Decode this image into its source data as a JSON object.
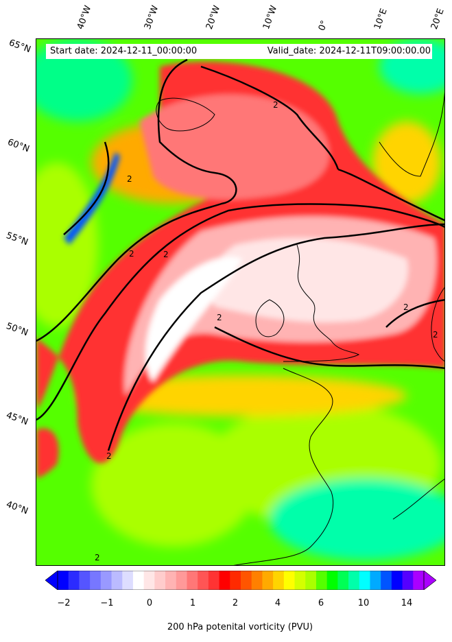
{
  "header": {
    "start_date": "Start date: 2024-12-11_00:00:00",
    "valid_date": "Valid_date: 2024-12-11T09:00:00.00"
  },
  "axes": {
    "longitude_labels": [
      "40°W",
      "30°W",
      "20°W",
      "10°W",
      "0°",
      "10°E",
      "20°E"
    ],
    "latitude_labels": [
      "65°N",
      "60°N",
      "55°N",
      "50°N",
      "45°N",
      "40°N"
    ]
  },
  "colorbar": {
    "title": "200 hPa potenital vorticity (PVU)",
    "tick_labels": [
      "−2",
      "−1",
      "0",
      "1",
      "2",
      "4",
      "6",
      "10",
      "14"
    ],
    "colors": [
      "#0000ff",
      "#2b2bff",
      "#5555ff",
      "#7777ff",
      "#9999ff",
      "#bbbbff",
      "#ddddff",
      "#ffffff",
      "#ffe6e6",
      "#ffcccc",
      "#ffb3b3",
      "#ff9999",
      "#ff7777",
      "#ff5555",
      "#ff3333",
      "#ff0000",
      "#ff2a00",
      "#ff5500",
      "#ff8000",
      "#ffaa00",
      "#ffd400",
      "#ffff00",
      "#d4ff00",
      "#aaff00",
      "#55ff00",
      "#00ff00",
      "#00ff55",
      "#00ffaa",
      "#00ffff",
      "#00aaff",
      "#0055ff",
      "#0000ff",
      "#5500ff",
      "#aa00ff"
    ],
    "extend": "both"
  },
  "map": {
    "contour_level_label": "2"
  }
}
